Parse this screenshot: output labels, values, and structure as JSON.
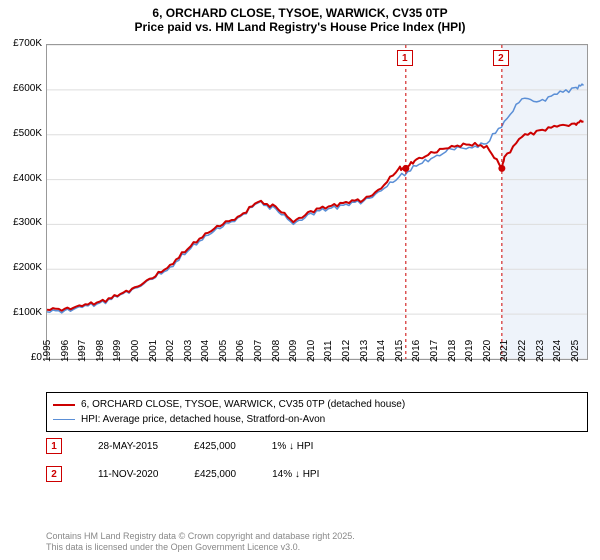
{
  "title": {
    "line1": "6, ORCHARD CLOSE, TYSOE, WARWICK, CV35 0TP",
    "line2": "Price paid vs. HM Land Registry's House Price Index (HPI)",
    "fontsize": 12,
    "fontweight": "bold"
  },
  "chart": {
    "type": "line",
    "background_color": "#ffffff",
    "grid_color": "#dddddd",
    "axis_color": "#999999",
    "label_fontsize": 10,
    "xlim": [
      1995,
      2025.7
    ],
    "ylim": [
      0,
      700000
    ],
    "ytick_step": 100000,
    "yticks": [
      "£0",
      "£100K",
      "£200K",
      "£300K",
      "£400K",
      "£500K",
      "£600K",
      "£700K"
    ],
    "xticks": [
      1995,
      1996,
      1997,
      1998,
      1999,
      2000,
      2001,
      2002,
      2003,
      2004,
      2005,
      2006,
      2007,
      2008,
      2009,
      2010,
      2011,
      2012,
      2013,
      2014,
      2015,
      2016,
      2017,
      2018,
      2019,
      2020,
      2021,
      2022,
      2023,
      2024,
      2025
    ],
    "series": [
      {
        "name": "property",
        "label": "6, ORCHARD CLOSE, TYSOE, WARWICK, CV35 0TP (detached house)",
        "color": "#cc0000",
        "line_width": 2,
        "data": [
          [
            1995,
            110000
          ],
          [
            1996,
            112000
          ],
          [
            1997,
            118000
          ],
          [
            1998,
            128000
          ],
          [
            1999,
            140000
          ],
          [
            2000,
            160000
          ],
          [
            2001,
            180000
          ],
          [
            2002,
            210000
          ],
          [
            2003,
            245000
          ],
          [
            2004,
            280000
          ],
          [
            2005,
            300000
          ],
          [
            2006,
            320000
          ],
          [
            2007,
            350000
          ],
          [
            2008,
            340000
          ],
          [
            2009,
            305000
          ],
          [
            2010,
            330000
          ],
          [
            2011,
            340000
          ],
          [
            2012,
            350000
          ],
          [
            2013,
            355000
          ],
          [
            2014,
            380000
          ],
          [
            2015,
            425000
          ],
          [
            2015.4,
            425000
          ],
          [
            2016,
            445000
          ],
          [
            2017,
            460000
          ],
          [
            2018,
            475000
          ],
          [
            2019,
            478000
          ],
          [
            2020,
            475000
          ],
          [
            2020.86,
            425000
          ],
          [
            2021,
            450000
          ],
          [
            2022,
            495000
          ],
          [
            2023,
            510000
          ],
          [
            2024,
            518000
          ],
          [
            2025,
            525000
          ],
          [
            2025.5,
            530000
          ]
        ]
      },
      {
        "name": "hpi",
        "label": "HPI: Average price, detached house, Stratford-on-Avon",
        "color": "#5b8fd6",
        "line_width": 1.5,
        "data": [
          [
            1995,
            105000
          ],
          [
            1996,
            108000
          ],
          [
            1997,
            115000
          ],
          [
            1998,
            125000
          ],
          [
            1999,
            138000
          ],
          [
            2000,
            158000
          ],
          [
            2001,
            178000
          ],
          [
            2002,
            205000
          ],
          [
            2003,
            240000
          ],
          [
            2004,
            275000
          ],
          [
            2005,
            295000
          ],
          [
            2006,
            318000
          ],
          [
            2007,
            348000
          ],
          [
            2008,
            335000
          ],
          [
            2009,
            300000
          ],
          [
            2010,
            325000
          ],
          [
            2011,
            335000
          ],
          [
            2012,
            345000
          ],
          [
            2013,
            352000
          ],
          [
            2014,
            375000
          ],
          [
            2015,
            405000
          ],
          [
            2016,
            430000
          ],
          [
            2017,
            450000
          ],
          [
            2018,
            468000
          ],
          [
            2019,
            472000
          ],
          [
            2020,
            480000
          ],
          [
            2021,
            530000
          ],
          [
            2022,
            580000
          ],
          [
            2023,
            575000
          ],
          [
            2024,
            590000
          ],
          [
            2025,
            605000
          ],
          [
            2025.5,
            610000
          ]
        ]
      }
    ],
    "sale_markers": [
      {
        "id": "1",
        "x": 2015.4,
        "y": 425000
      },
      {
        "id": "2",
        "x": 2020.86,
        "y": 425000
      }
    ],
    "shade_region": {
      "x_start": 2020.86,
      "x_end": 2025.7
    }
  },
  "legend": {
    "border_color": "#000000",
    "fontsize": 10,
    "items": [
      {
        "color": "#cc0000",
        "label": "6, ORCHARD CLOSE, TYSOE, WARWICK, CV35 0TP (detached house)",
        "width": 2
      },
      {
        "color": "#5b8fd6",
        "label": "HPI: Average price, detached house, Stratford-on-Avon",
        "width": 1.5
      }
    ]
  },
  "sales_table": {
    "fontsize": 10,
    "rows": [
      {
        "id": "1",
        "date": "28-MAY-2015",
        "price": "£425,000",
        "delta": "1% ↓ HPI"
      },
      {
        "id": "2",
        "date": "11-NOV-2020",
        "price": "£425,000",
        "delta": "14% ↓ HPI"
      }
    ]
  },
  "footnote": {
    "line1": "Contains HM Land Registry data © Crown copyright and database right 2025.",
    "line2": "This data is licensed under the Open Government Licence v3.0.",
    "color": "#888888",
    "fontsize": 9
  }
}
